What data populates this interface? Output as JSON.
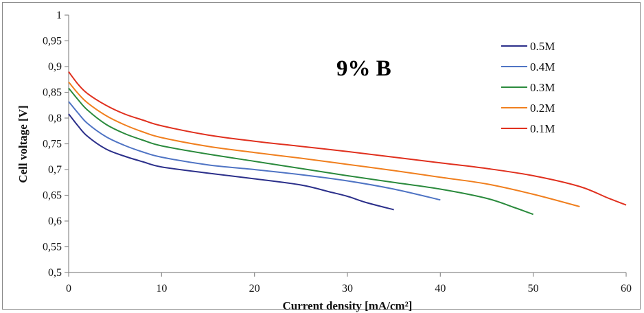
{
  "chart_data": {
    "type": "line",
    "title": "",
    "annotation": "9% B",
    "xlabel": "Current density [mA/cm²]",
    "ylabel": "Cell voltage [V]",
    "xlim": [
      0,
      60
    ],
    "ylim": [
      0.5,
      1.0
    ],
    "x_ticks": [
      "0",
      "10",
      "20",
      "30",
      "40",
      "50",
      "60"
    ],
    "y_ticks": [
      "0,5",
      "0,55",
      "0,6",
      "0,65",
      "0,7",
      "0,75",
      "0,8",
      "0,85",
      "0,9",
      "0,95",
      "1"
    ],
    "x_tick_values": [
      0,
      10,
      20,
      30,
      40,
      50,
      60
    ],
    "y_tick_values": [
      0.5,
      0.55,
      0.6,
      0.65,
      0.7,
      0.75,
      0.8,
      0.85,
      0.9,
      0.95,
      1.0
    ],
    "grid": false,
    "legend_position": "top-right",
    "series": [
      {
        "name": "0.5M",
        "color": "#2b2f8a",
        "x": [
          0,
          1,
          2,
          4,
          6,
          8,
          10,
          15,
          20,
          25,
          28,
          30,
          32,
          35
        ],
        "y": [
          0.808,
          0.785,
          0.765,
          0.74,
          0.726,
          0.715,
          0.705,
          0.693,
          0.682,
          0.67,
          0.657,
          0.648,
          0.636,
          0.622
        ]
      },
      {
        "name": "0.4M",
        "color": "#4f74c4",
        "x": [
          0,
          1,
          2,
          4,
          6,
          8,
          10,
          15,
          20,
          25,
          30,
          35,
          40
        ],
        "y": [
          0.832,
          0.81,
          0.79,
          0.764,
          0.747,
          0.734,
          0.724,
          0.709,
          0.7,
          0.69,
          0.678,
          0.662,
          0.641
        ]
      },
      {
        "name": "0.3M",
        "color": "#2a8a3c",
        "x": [
          0,
          1,
          2,
          4,
          6,
          8,
          10,
          15,
          20,
          25,
          30,
          35,
          40,
          45,
          48,
          50
        ],
        "y": [
          0.858,
          0.836,
          0.816,
          0.788,
          0.77,
          0.757,
          0.746,
          0.73,
          0.716,
          0.702,
          0.688,
          0.675,
          0.662,
          0.644,
          0.626,
          0.613
        ]
      },
      {
        "name": "0.2M",
        "color": "#f07f1e",
        "x": [
          0,
          1,
          2,
          4,
          6,
          8,
          10,
          15,
          20,
          25,
          30,
          35,
          40,
          45,
          50,
          55
        ],
        "y": [
          0.87,
          0.848,
          0.83,
          0.805,
          0.787,
          0.773,
          0.762,
          0.745,
          0.733,
          0.722,
          0.71,
          0.698,
          0.685,
          0.672,
          0.652,
          0.628
        ]
      },
      {
        "name": "0.1M",
        "color": "#e0301e",
        "x": [
          0,
          1,
          2,
          4,
          6,
          8,
          10,
          15,
          20,
          25,
          30,
          35,
          40,
          45,
          50,
          55,
          58,
          60
        ],
        "y": [
          0.89,
          0.866,
          0.848,
          0.825,
          0.808,
          0.796,
          0.785,
          0.767,
          0.755,
          0.745,
          0.735,
          0.724,
          0.713,
          0.702,
          0.688,
          0.667,
          0.645,
          0.631
        ]
      }
    ]
  }
}
